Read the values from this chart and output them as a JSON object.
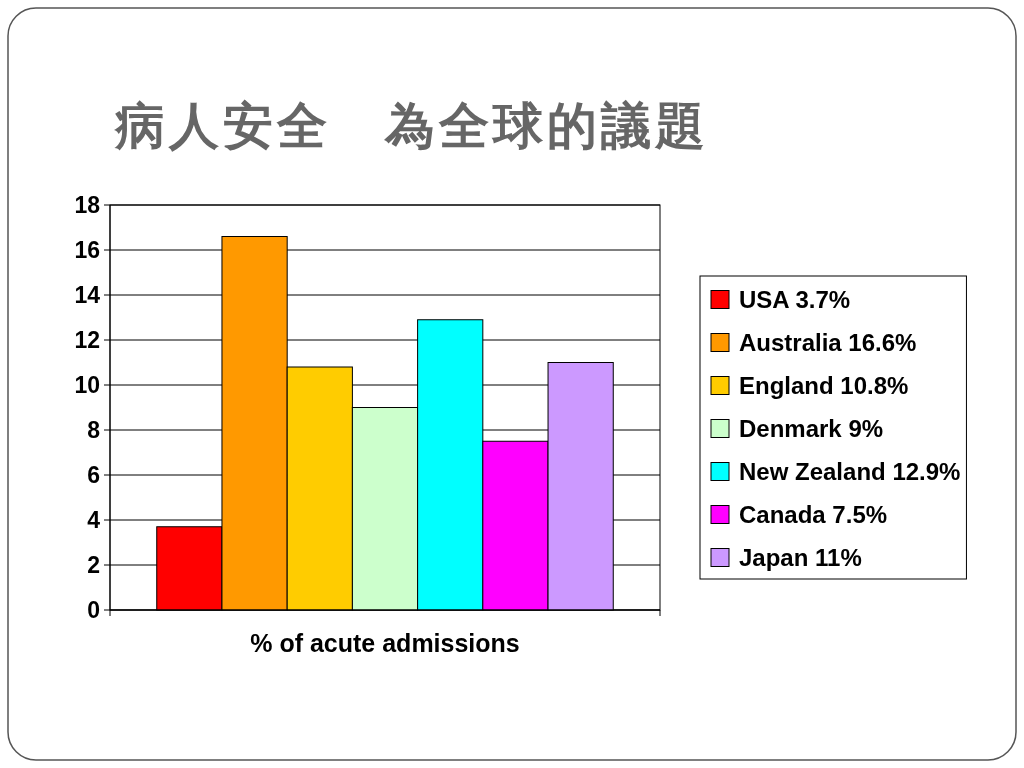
{
  "chart_data": {
    "type": "bar",
    "title": "病人安全　為全球的議題",
    "categories": [
      "% of acute admissions"
    ],
    "series": [
      {
        "name": "USA 3.7%",
        "color": "#ff0000",
        "values": [
          3.7
        ]
      },
      {
        "name": "Australia 16.6%",
        "color": "#ff9900",
        "values": [
          16.6
        ]
      },
      {
        "name": "England 10.8%",
        "color": "#ffcc00",
        "values": [
          10.8
        ]
      },
      {
        "name": "Denmark 9%",
        "color": "#ccffcc",
        "values": [
          9
        ]
      },
      {
        "name": "New Zealand 12.9%",
        "color": "#00ffff",
        "values": [
          12.9
        ]
      },
      {
        "name": "Canada 7.5%",
        "color": "#ff00ff",
        "values": [
          7.5
        ]
      },
      {
        "name": "Japan 11%",
        "color": "#cc99ff",
        "values": [
          11
        ]
      }
    ],
    "ylim": [
      0,
      18
    ],
    "yticks": [
      0,
      2,
      4,
      6,
      8,
      10,
      12,
      14,
      16,
      18
    ],
    "grid": "y",
    "legend": "right"
  }
}
